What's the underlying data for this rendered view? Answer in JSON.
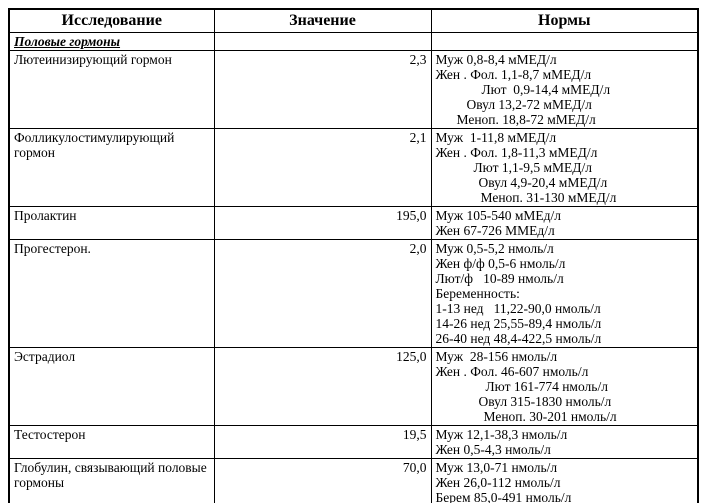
{
  "header": {
    "study": "Исследование",
    "value": "Значение",
    "norms": "Нормы"
  },
  "rows": [
    {
      "type": "section",
      "name": "Половые гормоны"
    },
    {
      "type": "result",
      "name": "Лютеинизирующий гормон",
      "value": "2,3",
      "norms": [
        {
          "text": "Муж 0,8-8,4 мМЕД/л",
          "indent": 0
        },
        {
          "text": "Жен . Фол. 1,1-8,7 мМЕД/л",
          "indent": 0
        },
        {
          "text": "Лют  0,9-14,4 мМЕД/л",
          "indent": 46
        },
        {
          "text": "Овул 13,2-72 мМЕД/л",
          "indent": 31
        },
        {
          "text": "Меноп. 18,8-72 мМЕД/л",
          "indent": 21
        }
      ]
    },
    {
      "type": "result",
      "name": "Фолликулостимулирующий гормон",
      "value": "2,1",
      "norms": [
        {
          "text": "Муж  1-11,8 мМЕД/л",
          "indent": 0
        },
        {
          "text": "Жен . Фол. 1,8-11,3 мМЕД/л",
          "indent": 0
        },
        {
          "text": "Лют 1,1-9,5 мМЕД/л",
          "indent": 38
        },
        {
          "text": "Овул 4,9-20,4 мМЕД/л",
          "indent": 43
        },
        {
          "text": "Меноп. 31-130 мМЕД/л",
          "indent": 45
        }
      ]
    },
    {
      "type": "result",
      "name": "Пролактин",
      "value": "195,0",
      "norms": [
        {
          "text": "Муж 105-540 мМЕд/л",
          "indent": 0
        },
        {
          "text": "Жен 67-726 ММЕд/л",
          "indent": 0
        }
      ]
    },
    {
      "type": "result",
      "name": "Прогестерон.",
      "value": "2,0",
      "norms": [
        {
          "text": "Муж 0,5-5,2 нмоль/л",
          "indent": 0
        },
        {
          "text": "Жен ф/ф 0,5-6 нмоль/л",
          "indent": 0
        },
        {
          "text": "Лют/ф   10-89 нмоль/л",
          "indent": 0
        },
        {
          "text": "Беременность:",
          "indent": 0
        },
        {
          "text": "1-13 нед   11,22-90,0 нмоль/л",
          "indent": 0
        },
        {
          "text": "14-26 нед 25,55-89,4 нмоль/л",
          "indent": 0
        },
        {
          "text": "26-40 нед 48,4-422,5 нмоль/л",
          "indent": 0
        }
      ]
    },
    {
      "type": "result",
      "name": "Эстрадиол",
      "value": "125,0",
      "norms": [
        {
          "text": "Муж  28-156 нмоль/л",
          "indent": 0
        },
        {
          "text": "Жен . Фол. 46-607 нмоль/л",
          "indent": 0
        },
        {
          "text": "Лют 161-774 нмоль/л",
          "indent": 50
        },
        {
          "text": "Овул 315-1830 нмоль/л",
          "indent": 43
        },
        {
          "text": "Меноп. 30-201 нмоль/л",
          "indent": 48
        }
      ]
    },
    {
      "type": "result",
      "name": "Тестостерон",
      "value": "19,5",
      "norms": [
        {
          "text": "Муж 12,1-38,3 нмоль/л",
          "indent": 0
        },
        {
          "text": "Жен 0,5-4,3 нмоль/л",
          "indent": 0
        }
      ]
    },
    {
      "type": "result",
      "name": "Глобулин, связывающий половые гормоны",
      "value": "70,0",
      "norms": [
        {
          "text": "Муж 13,0-71 нмоль/л",
          "indent": 0
        },
        {
          "text": "Жен 26,0-112 нмоль/л",
          "indent": 0
        },
        {
          "text": "Берем 85,0-491 нмоль/л",
          "indent": 0
        }
      ]
    }
  ],
  "colors": {
    "border": "#000000",
    "text": "#000000",
    "background": "#ffffff"
  }
}
